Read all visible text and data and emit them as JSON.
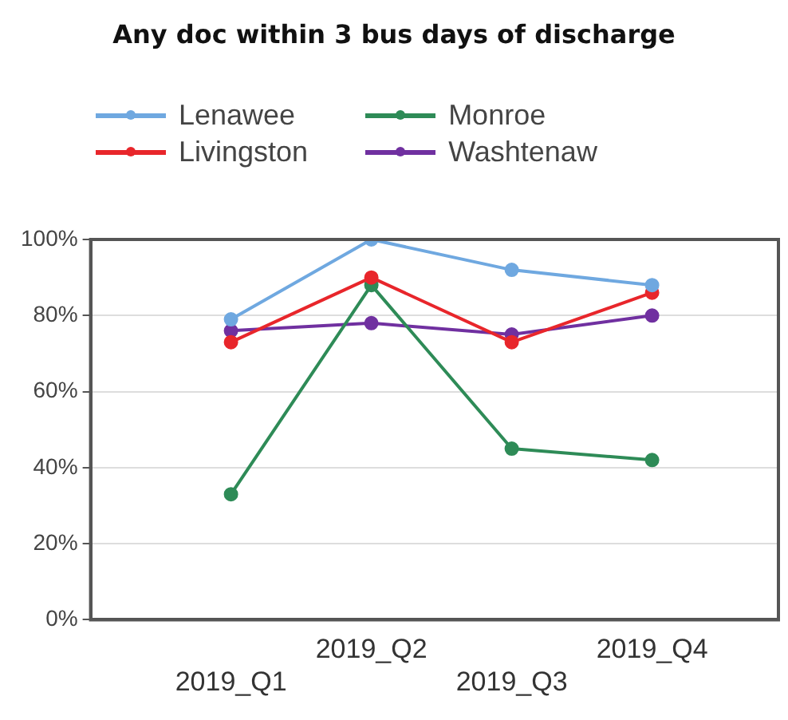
{
  "chart_data": {
    "type": "line",
    "title": "Any doc within 3 bus days of discharge",
    "categories": [
      "2019_Q1",
      "2019_Q2",
      "2019_Q3",
      "2019_Q4"
    ],
    "series": [
      {
        "name": "Lenawee",
        "color": "#6fa8e0",
        "values": [
          79,
          100,
          92,
          88
        ]
      },
      {
        "name": "Livingston",
        "color": "#e8262b",
        "values": [
          73,
          90,
          73,
          86
        ]
      },
      {
        "name": "Monroe",
        "color": "#2e8b57",
        "values": [
          33,
          88,
          45,
          42
        ]
      },
      {
        "name": "Washtenaw",
        "color": "#7030a0",
        "values": [
          76,
          78,
          75,
          80
        ]
      }
    ],
    "ylim": [
      0,
      100
    ],
    "yticks": [
      {
        "value": 0,
        "label": "0%"
      },
      {
        "value": 20,
        "label": "20%"
      },
      {
        "value": 40,
        "label": "40%"
      },
      {
        "value": 60,
        "label": "60%"
      },
      {
        "value": 80,
        "label": "80%"
      },
      {
        "value": 100,
        "label": "100%"
      }
    ],
    "grid": "y",
    "legend": "top",
    "marker": "circle",
    "line_style": "solid"
  }
}
